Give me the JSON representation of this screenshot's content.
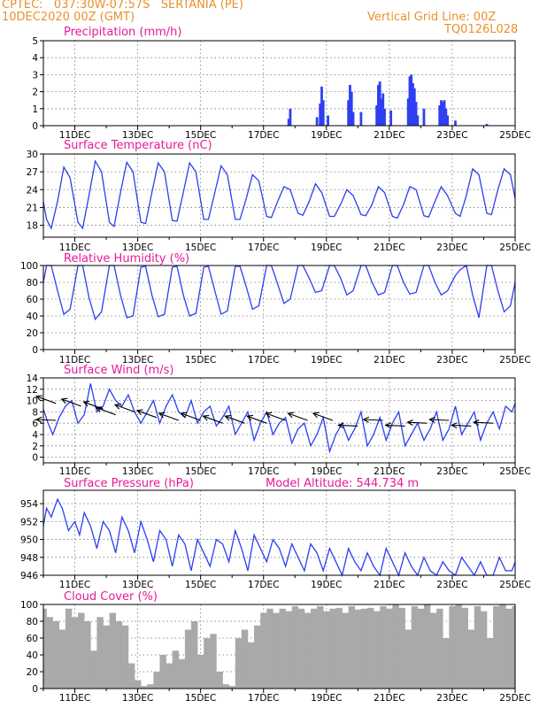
{
  "header": {
    "line1_left": "CPTEC:   037:30W-07:57S   SERTANIA (PE)",
    "line2_left": "10DEC2020 00Z (GMT)",
    "line2_right": "Vertical Grid Line: 00Z",
    "line3_right": "TQ0126L028"
  },
  "colors": {
    "header": "#e8912c",
    "title": "#e8199a",
    "line": "#2b3ff0",
    "bar": "#2f3ff2",
    "cloud": "#a9a9a9"
  },
  "chart_data": [
    {
      "type": "bar",
      "title": "Precipitation (mm/h)",
      "ylim": [
        0,
        5
      ],
      "yticks": [
        0,
        1,
        2,
        3,
        4,
        5
      ],
      "xticks": [
        "11DEC",
        "13DEC",
        "15DEC",
        "17DEC",
        "19DEC",
        "21DEC",
        "23DEC",
        "25DEC"
      ],
      "series": [
        {
          "x": [
            7.8,
            7.85,
            8.7,
            8.8,
            8.85,
            8.9,
            9.05,
            9.7,
            9.75,
            9.8,
            9.85,
            10.1,
            10.6,
            10.65,
            10.7,
            10.75,
            10.8,
            10.85,
            11.05,
            11.6,
            11.65,
            11.7,
            11.75,
            11.8,
            11.85,
            11.9,
            12.1,
            12.6,
            12.65,
            12.7,
            12.75,
            12.8,
            12.85,
            13.1,
            14.1
          ],
          "y": [
            0.4,
            1.0,
            0.5,
            1.3,
            2.3,
            1.5,
            0.6,
            1.5,
            2.4,
            2.0,
            0.8,
            0.8,
            1.2,
            2.4,
            2.6,
            1.6,
            1.9,
            1.0,
            0.9,
            1.6,
            2.9,
            3.0,
            2.5,
            2.2,
            1.4,
            0.6,
            1.0,
            1.2,
            1.5,
            1.4,
            1.5,
            1.0,
            0.6,
            0.3,
            0.1
          ]
        }
      ]
    },
    {
      "type": "line",
      "title": "Surface Temperature (nC)",
      "ylim": [
        16,
        30
      ],
      "yticks": [
        18,
        21,
        24,
        27,
        30
      ],
      "xticks": [
        "11DEC",
        "13DEC",
        "15DEC",
        "17DEC",
        "19DEC",
        "21DEC",
        "23DEC",
        "25DEC"
      ],
      "series": [
        {
          "x": [
            0,
            0.1,
            0.25,
            0.45,
            0.65,
            0.85,
            1.1,
            1.25,
            1.45,
            1.65,
            1.85,
            2.1,
            2.25,
            2.45,
            2.65,
            2.85,
            3.1,
            3.25,
            3.45,
            3.65,
            3.85,
            4.1,
            4.25,
            4.45,
            4.65,
            4.85,
            5.1,
            5.25,
            5.45,
            5.65,
            5.85,
            6.1,
            6.25,
            6.45,
            6.65,
            6.85,
            7.1,
            7.25,
            7.45,
            7.65,
            7.85,
            8.1,
            8.25,
            8.45,
            8.65,
            8.85,
            9.1,
            9.25,
            9.45,
            9.65,
            9.85,
            10.1,
            10.25,
            10.45,
            10.65,
            10.85,
            11.1,
            11.25,
            11.45,
            11.65,
            11.85,
            12.1,
            12.25,
            12.45,
            12.65,
            12.85,
            13.1,
            13.25,
            13.45,
            13.65,
            13.85,
            14.1,
            14.25,
            14.45,
            14.65,
            14.85,
            15.0
          ],
          "y": [
            22.0,
            19.0,
            17.5,
            22.0,
            27.8,
            26.0,
            18.5,
            17.5,
            23.0,
            28.8,
            27.0,
            18.5,
            17.8,
            23.5,
            28.6,
            27.0,
            18.5,
            18.3,
            23.5,
            28.5,
            27.0,
            18.8,
            18.7,
            23.5,
            28.5,
            27.0,
            19.0,
            19.0,
            23.5,
            28.0,
            26.5,
            19.0,
            19.0,
            22.5,
            26.5,
            25.5,
            19.5,
            19.3,
            22.0,
            24.5,
            24.0,
            20.0,
            19.7,
            22.0,
            25.0,
            23.5,
            19.5,
            19.5,
            21.5,
            24.0,
            23.0,
            19.8,
            19.6,
            21.5,
            24.5,
            23.5,
            19.5,
            19.2,
            21.5,
            24.5,
            24.0,
            19.6,
            19.4,
            22.0,
            24.5,
            23.0,
            20.0,
            19.5,
            23.0,
            27.5,
            26.5,
            20.0,
            19.8,
            24.0,
            27.5,
            26.5,
            22.5
          ]
        }
      ]
    },
    {
      "type": "line",
      "title": "Relative Humidity (%)",
      "ylim": [
        0,
        100
      ],
      "yticks": [
        0,
        20,
        40,
        60,
        80,
        100
      ],
      "xticks": [
        "11DEC",
        "13DEC",
        "15DEC",
        "17DEC",
        "19DEC",
        "21DEC",
        "23DEC",
        "25DEC"
      ],
      "series": [
        {
          "x": [
            0,
            0.1,
            0.25,
            0.45,
            0.65,
            0.85,
            1.1,
            1.25,
            1.45,
            1.65,
            1.85,
            2.1,
            2.25,
            2.45,
            2.65,
            2.85,
            3.1,
            3.25,
            3.45,
            3.65,
            3.85,
            4.1,
            4.25,
            4.45,
            4.65,
            4.85,
            5.1,
            5.25,
            5.45,
            5.65,
            5.85,
            6.1,
            6.25,
            6.45,
            6.65,
            6.85,
            7.1,
            7.25,
            7.45,
            7.65,
            7.85,
            8.1,
            8.25,
            8.45,
            8.65,
            8.85,
            9.1,
            9.25,
            9.45,
            9.65,
            9.85,
            10.1,
            10.25,
            10.45,
            10.65,
            10.85,
            11.1,
            11.25,
            11.45,
            11.65,
            11.85,
            12.1,
            12.25,
            12.45,
            12.65,
            12.85,
            13.1,
            13.25,
            13.45,
            13.65,
            13.85,
            14.1,
            14.25,
            14.45,
            14.65,
            14.85,
            15.0
          ],
          "y": [
            80,
            100,
            100,
            70,
            42,
            48,
            100,
            100,
            62,
            36,
            45,
            100,
            100,
            65,
            38,
            40,
            98,
            99,
            65,
            39,
            42,
            98,
            99,
            65,
            40,
            43,
            98,
            99,
            70,
            42,
            46,
            99,
            99,
            75,
            48,
            52,
            100,
            100,
            78,
            55,
            60,
            100,
            100,
            85,
            68,
            70,
            100,
            100,
            85,
            65,
            70,
            100,
            100,
            80,
            65,
            68,
            100,
            100,
            80,
            66,
            68,
            100,
            100,
            80,
            65,
            70,
            88,
            95,
            100,
            65,
            38,
            100,
            100,
            70,
            45,
            52,
            80
          ]
        }
      ]
    },
    {
      "type": "line",
      "title": "Surface Wind (m/s)",
      "ylim": [
        -1,
        14
      ],
      "yticks": [
        0,
        2,
        4,
        6,
        8,
        10,
        12,
        14
      ],
      "xticks": [
        "11DEC",
        "13DEC",
        "15DEC",
        "17DEC",
        "19DEC",
        "21DEC",
        "23DEC",
        "25DEC"
      ],
      "series": [
        {
          "x": [
            0,
            0.15,
            0.3,
            0.5,
            0.7,
            0.9,
            1.1,
            1.3,
            1.5,
            1.7,
            1.9,
            2.1,
            2.3,
            2.5,
            2.7,
            2.9,
            3.1,
            3.3,
            3.5,
            3.7,
            3.9,
            4.1,
            4.3,
            4.5,
            4.7,
            4.9,
            5.1,
            5.3,
            5.5,
            5.7,
            5.9,
            6.1,
            6.3,
            6.5,
            6.7,
            6.9,
            7.1,
            7.3,
            7.5,
            7.7,
            7.9,
            8.1,
            8.3,
            8.5,
            8.7,
            8.9,
            9.1,
            9.3,
            9.5,
            9.7,
            9.9,
            10.1,
            10.3,
            10.5,
            10.7,
            10.9,
            11.1,
            11.3,
            11.5,
            11.7,
            11.9,
            12.1,
            12.3,
            12.5,
            12.7,
            12.9,
            13.1,
            13.3,
            13.5,
            13.7,
            13.9,
            14.1,
            14.3,
            14.5,
            14.7,
            14.9,
            15.0
          ],
          "y": [
            8.5,
            6,
            4,
            7,
            9,
            10,
            6,
            7.5,
            13,
            8,
            9,
            12,
            10,
            9,
            11,
            8,
            6,
            8,
            10,
            6,
            9,
            11,
            8,
            7,
            10,
            6,
            8,
            9,
            5.5,
            7,
            9,
            4,
            6,
            8,
            3,
            6,
            8,
            4,
            6,
            7,
            2.5,
            5,
            6,
            2,
            4,
            7,
            1,
            4,
            6,
            3,
            5,
            8,
            2,
            4,
            7,
            3,
            6,
            8,
            2,
            4,
            6,
            3,
            5,
            8,
            3,
            5,
            9,
            4,
            6,
            8,
            3,
            6,
            8,
            5,
            9,
            8,
            9.5
          ]
        }
      ],
      "arrows": [
        {
          "x": 0.4,
          "y": 6.5,
          "dir": "W"
        },
        {
          "x": 0.4,
          "y": 9.5,
          "dir": "NW"
        },
        {
          "x": 1.2,
          "y": 9.0,
          "dir": "NW"
        },
        {
          "x": 1.9,
          "y": 8.5,
          "dir": "NW"
        },
        {
          "x": 2.3,
          "y": 7.5,
          "dir": "NW"
        },
        {
          "x": 2.9,
          "y": 8.0,
          "dir": "NW"
        },
        {
          "x": 3.6,
          "y": 7.0,
          "dir": "NW"
        },
        {
          "x": 4.3,
          "y": 6.5,
          "dir": "NW"
        },
        {
          "x": 5.0,
          "y": 6.5,
          "dir": "NW"
        },
        {
          "x": 5.7,
          "y": 6.0,
          "dir": "NW"
        },
        {
          "x": 6.4,
          "y": 6.0,
          "dir": "NW"
        },
        {
          "x": 7.1,
          "y": 6.0,
          "dir": "NW"
        },
        {
          "x": 7.7,
          "y": 6.5,
          "dir": "NW"
        },
        {
          "x": 8.4,
          "y": 6.5,
          "dir": "NW"
        },
        {
          "x": 9.2,
          "y": 6.5,
          "dir": "NW"
        },
        {
          "x": 10.0,
          "y": 5.5,
          "dir": "W"
        },
        {
          "x": 10.8,
          "y": 6.5,
          "dir": "W"
        },
        {
          "x": 11.5,
          "y": 5.5,
          "dir": "W"
        },
        {
          "x": 12.2,
          "y": 6.0,
          "dir": "W"
        },
        {
          "x": 12.9,
          "y": 6.5,
          "dir": "W"
        },
        {
          "x": 13.6,
          "y": 5.5,
          "dir": "W"
        },
        {
          "x": 14.3,
          "y": 6.0,
          "dir": "W"
        }
      ]
    },
    {
      "type": "line",
      "title": "Surface Pressure (hPa)",
      "annotation": "Model Altitude: 544.734 m",
      "ylim": [
        946,
        955.5
      ],
      "yticks": [
        946,
        948,
        950,
        952,
        954
      ],
      "xticks": [
        "11DEC",
        "13DEC",
        "15DEC",
        "17DEC",
        "19DEC",
        "21DEC",
        "23DEC",
        "25DEC"
      ],
      "series": [
        {
          "x": [
            0,
            0.1,
            0.25,
            0.45,
            0.6,
            0.8,
            1.0,
            1.15,
            1.3,
            1.5,
            1.7,
            1.9,
            2.1,
            2.3,
            2.5,
            2.7,
            2.9,
            3.1,
            3.3,
            3.5,
            3.7,
            3.9,
            4.1,
            4.3,
            4.5,
            4.7,
            4.9,
            5.1,
            5.3,
            5.5,
            5.7,
            5.9,
            6.1,
            6.3,
            6.5,
            6.7,
            6.9,
            7.1,
            7.3,
            7.5,
            7.7,
            7.9,
            8.1,
            8.3,
            8.5,
            8.7,
            8.9,
            9.1,
            9.3,
            9.5,
            9.7,
            9.9,
            10.1,
            10.3,
            10.5,
            10.7,
            10.9,
            11.1,
            11.3,
            11.5,
            11.7,
            11.9,
            12.1,
            12.3,
            12.5,
            12.7,
            12.9,
            13.1,
            13.3,
            13.5,
            13.7,
            13.9,
            14.1,
            14.3,
            14.5,
            14.7,
            14.9,
            15.0
          ],
          "y": [
            951.5,
            953.5,
            952.5,
            954.5,
            953.5,
            951.0,
            952.0,
            950.5,
            953.0,
            951.5,
            949.0,
            952.0,
            951.0,
            948.5,
            952.5,
            951.0,
            948.5,
            952.0,
            950.0,
            947.5,
            951.0,
            950.0,
            947.0,
            950.5,
            949.5,
            946.5,
            950.0,
            948.5,
            947.0,
            950.0,
            949.5,
            947.5,
            951.0,
            949.0,
            946.5,
            950.5,
            949.0,
            947.5,
            950.0,
            949.0,
            947.0,
            949.5,
            948.0,
            946.5,
            949.5,
            948.5,
            946.5,
            949.0,
            947.5,
            946.0,
            949.0,
            947.5,
            946.5,
            948.5,
            947.0,
            946.0,
            949.0,
            947.5,
            946.0,
            948.5,
            947.0,
            946.0,
            948.0,
            946.5,
            946.0,
            947.5,
            946.5,
            946.0,
            948.0,
            947.0,
            946.0,
            947.5,
            946.0,
            946.0,
            948.0,
            946.5,
            946.5,
            947.5
          ]
        }
      ]
    },
    {
      "type": "area",
      "title": "Cloud Cover (%)",
      "ylim": [
        0,
        100
      ],
      "yticks": [
        0,
        20,
        40,
        60,
        80,
        100
      ],
      "xticks": [
        "11DEC",
        "13DEC",
        "15DEC",
        "17DEC",
        "19DEC",
        "21DEC",
        "23DEC",
        "25DEC"
      ],
      "series": [
        {
          "x": [
            0,
            0.1,
            0.3,
            0.5,
            0.7,
            0.9,
            1.1,
            1.3,
            1.5,
            1.7,
            1.9,
            2.1,
            2.3,
            2.5,
            2.7,
            2.9,
            3.1,
            3.3,
            3.5,
            3.7,
            3.9,
            4.1,
            4.3,
            4.5,
            4.7,
            4.9,
            5.1,
            5.3,
            5.5,
            5.7,
            5.9,
            6.1,
            6.3,
            6.5,
            6.7,
            6.9,
            7.1,
            7.3,
            7.5,
            7.7,
            7.9,
            8.1,
            8.3,
            8.5,
            8.7,
            8.9,
            9.1,
            9.3,
            9.5,
            9.7,
            9.9,
            10.1,
            10.3,
            10.5,
            10.7,
            10.9,
            11.1,
            11.3,
            11.5,
            11.7,
            11.9,
            12.1,
            12.3,
            12.5,
            12.7,
            12.9,
            13.1,
            13.3,
            13.5,
            13.7,
            13.9,
            14.1,
            14.3,
            14.5,
            14.7,
            14.9,
            15.0
          ],
          "y": [
            95,
            85,
            80,
            70,
            95,
            85,
            90,
            80,
            45,
            85,
            75,
            90,
            80,
            75,
            30,
            10,
            3,
            5,
            20,
            40,
            30,
            45,
            35,
            70,
            80,
            40,
            60,
            65,
            20,
            5,
            3,
            60,
            70,
            55,
            75,
            90,
            95,
            90,
            95,
            92,
            98,
            95,
            90,
            95,
            98,
            92,
            95,
            96,
            90,
            98,
            94,
            95,
            96,
            92,
            98,
            95,
            100,
            96,
            70,
            98,
            95,
            100,
            90,
            95,
            60,
            98,
            100,
            96,
            70,
            98,
            92,
            60,
            98,
            100,
            95,
            98,
            100
          ]
        }
      ]
    }
  ]
}
